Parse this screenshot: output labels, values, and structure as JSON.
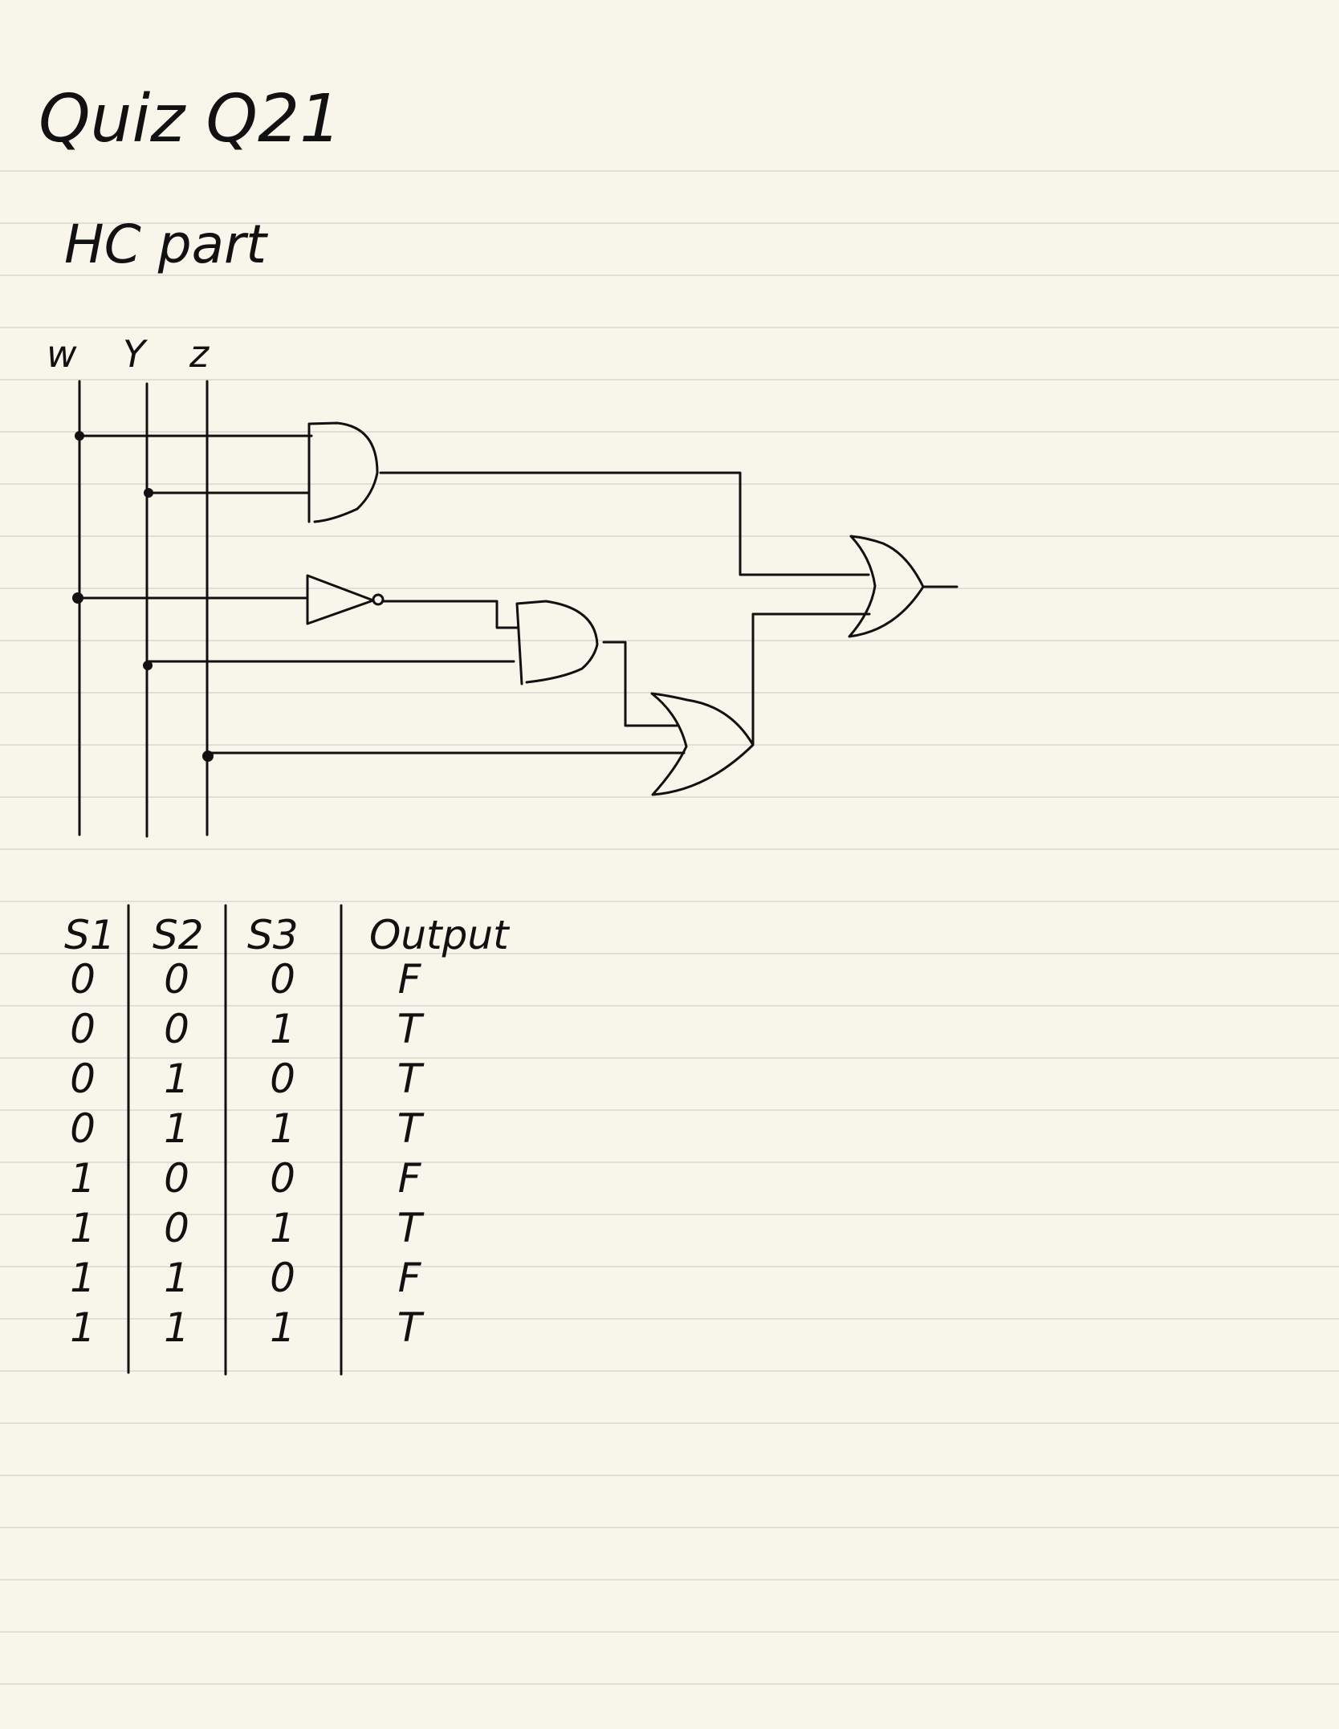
{
  "title": "Quiz Q21",
  "subtitle": "HC part",
  "inputs": [
    "w",
    "Y",
    "z"
  ],
  "truth_table": {
    "headers": [
      "S1",
      "S2",
      "S3",
      "Output"
    ],
    "rows": [
      [
        "0",
        "0",
        "0",
        "F"
      ],
      [
        "0",
        "0",
        "1",
        "T"
      ],
      [
        "0",
        "1",
        "0",
        "T"
      ],
      [
        "0",
        "1",
        "1",
        "T"
      ],
      [
        "1",
        "0",
        "0",
        "F"
      ],
      [
        "1",
        "0",
        "1",
        "T"
      ],
      [
        "1",
        "1",
        "0",
        "F"
      ],
      [
        "1",
        "1",
        "1",
        "T"
      ]
    ]
  },
  "colors": {
    "paper": "#f8f6ea",
    "rule": "#d7d6cf",
    "ink": "#111111"
  }
}
